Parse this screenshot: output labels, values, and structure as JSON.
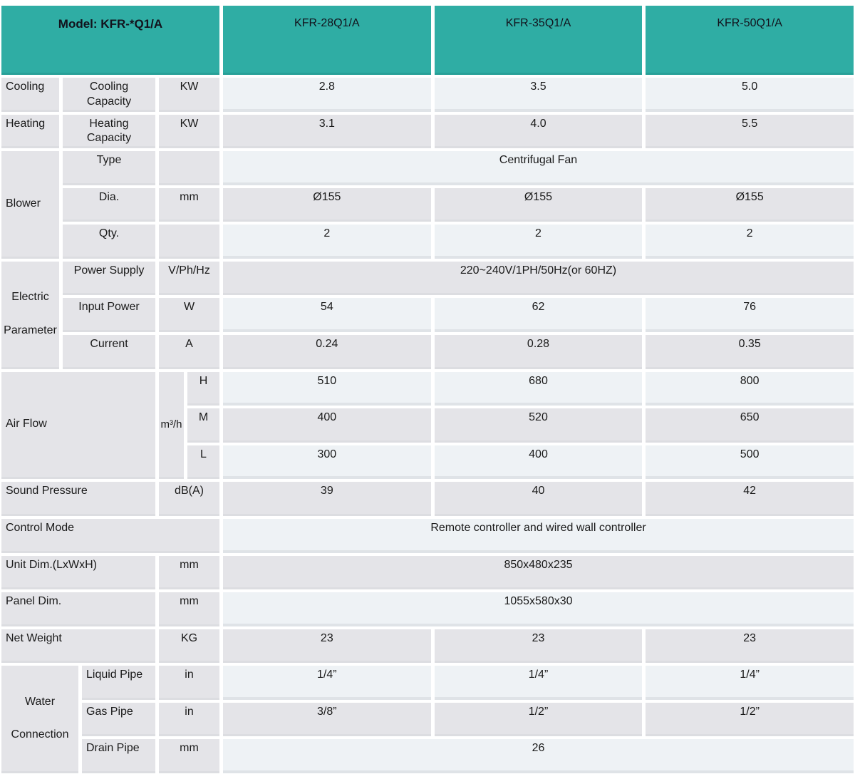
{
  "header": {
    "model_label": "Model: KFR-*Q1/A",
    "models": [
      "KFR-28Q1/A",
      "KFR-35Q1/A",
      "KFR-50Q1/A"
    ]
  },
  "specs": {
    "cooling": {
      "group": "Cooling",
      "label": "Cooling Capacity",
      "unit": "KW",
      "values": [
        "2.8",
        "3.5",
        "5.0"
      ]
    },
    "heating": {
      "group": "Heating",
      "label": "Heating Capacity",
      "unit": "KW",
      "values": [
        "3.1",
        "4.0",
        "5.5"
      ]
    },
    "blower": {
      "group": "Blower"
    },
    "blower_type": {
      "label": "Type",
      "value": "Centrifugal Fan"
    },
    "blower_dia": {
      "label": "Dia.",
      "unit": "mm",
      "values": [
        "Ø155",
        "Ø155",
        "Ø155"
      ]
    },
    "blower_qty": {
      "label": "Qty.",
      "values": [
        "2",
        "2",
        "2"
      ]
    },
    "electric": {
      "group": "Electric Parameter"
    },
    "power_supply": {
      "label": "Power Supply",
      "unit": "V/Ph/Hz",
      "value": "220~240V/1PH/50Hz(or 60HZ)"
    },
    "input_power": {
      "label": "Input Power",
      "unit": "W",
      "values": [
        "54",
        "62",
        "76"
      ]
    },
    "current": {
      "label": "Current",
      "unit": "A",
      "values": [
        "0.24",
        "0.28",
        "0.35"
      ]
    },
    "air_flow": {
      "group": "Air Flow",
      "unit": "m³/h",
      "levels": [
        "H",
        "M",
        "L"
      ],
      "high": [
        "510",
        "680",
        "800"
      ],
      "medium": [
        "400",
        "520",
        "650"
      ],
      "low": [
        "300",
        "400",
        "500"
      ]
    },
    "sound_pressure": {
      "label": "Sound Pressure",
      "unit": "dB(A)",
      "values": [
        "39",
        "40",
        "42"
      ]
    },
    "control_mode": {
      "label": "Control Mode",
      "value": "Remote controller and wired wall controller"
    },
    "unit_dim": {
      "label": "Unit Dim.(LxWxH)",
      "unit": "mm",
      "value": "850x480x235"
    },
    "panel_dim": {
      "label": "Panel Dim.",
      "unit": "mm",
      "value": "1055x580x30"
    },
    "net_weight": {
      "label": "Net Weight",
      "unit": "KG",
      "values": [
        "23",
        "23",
        "23"
      ]
    },
    "water": {
      "group": "Water Connection"
    },
    "liquid_pipe": {
      "label": "Liquid Pipe",
      "unit": "in",
      "values": [
        "1/4”",
        "1/4”",
        "1/4”"
      ]
    },
    "gas_pipe": {
      "label": "Gas Pipe",
      "unit": "in",
      "values": [
        "3/8”",
        "1/2”",
        "1/2”"
      ]
    },
    "drain_pipe": {
      "label": "Drain Pipe",
      "unit": "mm",
      "value": "26"
    }
  },
  "colors": {
    "header_teal": "#2fada4",
    "row_light": "#eef2f5",
    "row_gray": "#e4e4e8"
  }
}
